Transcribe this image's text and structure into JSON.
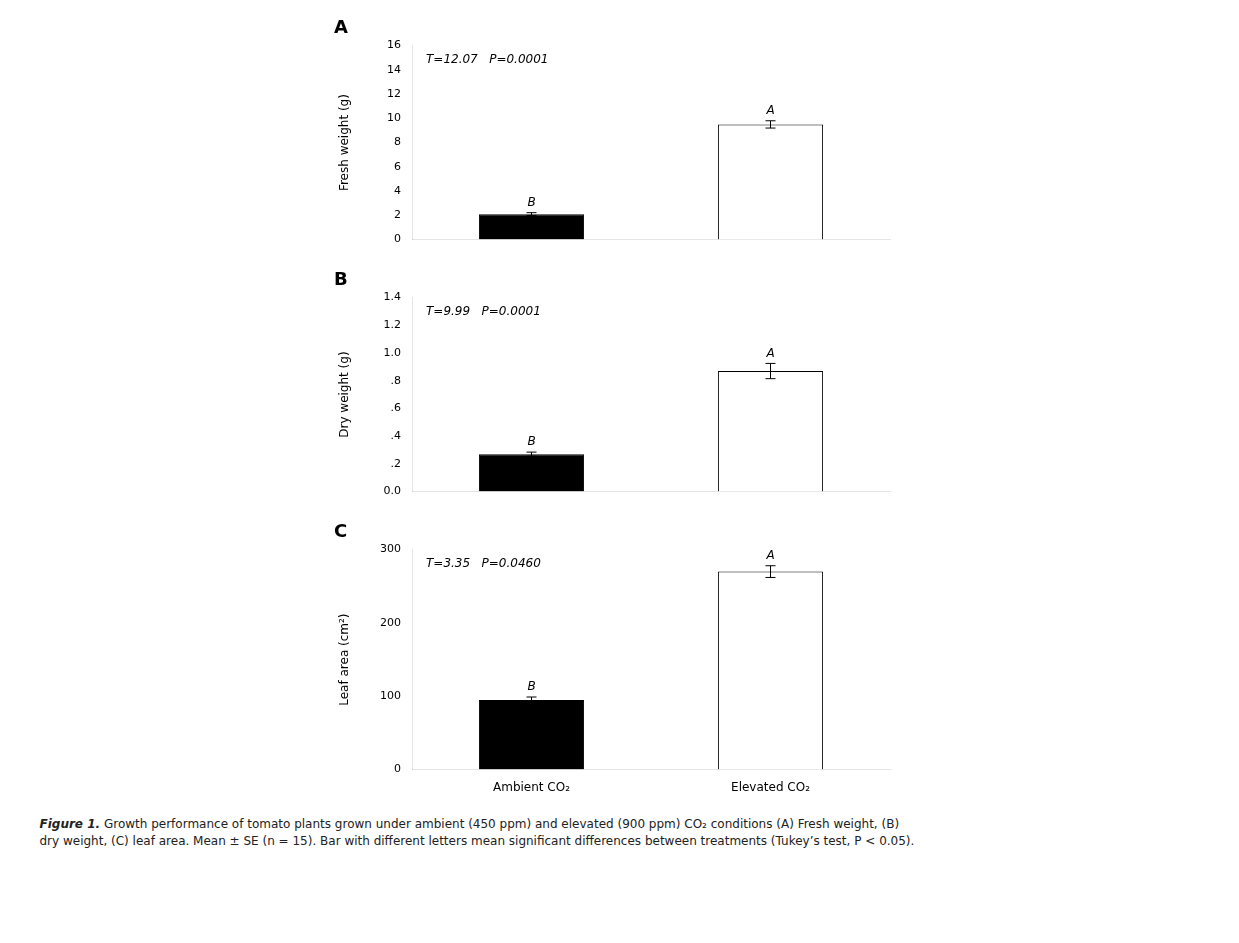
{
  "chart_data": [
    {
      "type": "bar",
      "title": "A",
      "annotation": "T=12.07   P=0.0001",
      "y_label": "Fresh weight (g)",
      "categories": [
        null,
        null
      ],
      "values": [
        2.1,
        9.5
      ],
      "errors": [
        0.12,
        0.3
      ],
      "letters": [
        "B",
        "A"
      ],
      "colors": [
        "black",
        "white"
      ],
      "ylim": [
        0,
        16
      ],
      "yticks": [
        0,
        2,
        4,
        6,
        8,
        10,
        12,
        14,
        16
      ],
      "grid": false
    },
    {
      "type": "bar",
      "title": "B",
      "annotation": "T=9.99   P=0.0001",
      "y_label": "Dry weight (g)",
      "categories": [
        null,
        null
      ],
      "values": [
        0.27,
        0.87
      ],
      "errors": [
        0.015,
        0.055
      ],
      "letters": [
        "B",
        "A"
      ],
      "colors": [
        "black",
        "white"
      ],
      "ylim": [
        0.0,
        1.4
      ],
      "yticks": [
        {
          "value": 0.0,
          "label": "0.0"
        },
        {
          "value": 0.2,
          "label": ".2"
        },
        {
          "value": 0.4,
          "label": ".4"
        },
        {
          "value": 0.6,
          "label": ".6"
        },
        {
          "value": 0.8,
          "label": ".8"
        },
        {
          "value": 1.0,
          "label": "1.0"
        },
        1.2,
        1.4
      ],
      "grid": false
    },
    {
      "type": "bar",
      "title": "C",
      "annotation": "T=3.35   P=0.0460",
      "y_label": "Leaf area (cm²)",
      "categories": [
        "Ambient CO₂",
        "Elevated CO₂"
      ],
      "values": [
        95,
        270
      ],
      "errors": [
        4,
        8
      ],
      "letters": [
        "B",
        "A"
      ],
      "colors": [
        "black",
        "white"
      ],
      "ylim": [
        0,
        300
      ],
      "yticks": [
        0,
        100,
        200,
        300
      ],
      "grid": false
    }
  ],
  "caption_title": "Figure 1.",
  "caption": " Growth performance of tomato plants grown under ambient (450 ppm) and elevated (900 ppm) CO₂ conditions (A) Fresh weight, (B)\ndry weight, (C) leaf area. Mean ± SE (n = 15). Bar with different letters mean significant differences between treatments (Tukey’s test, P < 0.05)."
}
